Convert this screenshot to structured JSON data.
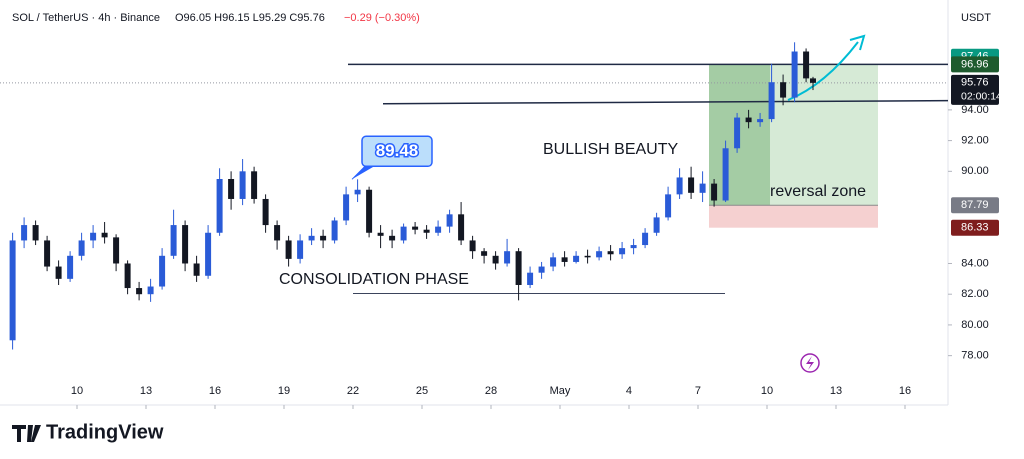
{
  "chart_data": {
    "type": "candlestick",
    "header": {
      "symbol": "SOL / TetherUS · 4h · Binance",
      "ohlc": "O96.05 H96.15 L95.29 C95.76",
      "change": "−0.29 (−0.30%)"
    },
    "currency": "USDT",
    "up_color": "#2a5bd7",
    "down_color": "#131722",
    "x": [
      7.2,
      7.7,
      8.2,
      8.7,
      9.2,
      9.7,
      10.2,
      10.7,
      11.2,
      11.7,
      12.2,
      12.7,
      13.2,
      13.7,
      14.2,
      14.7,
      15.2,
      15.7,
      16.2,
      16.7,
      17.2,
      17.7,
      18.2,
      18.7,
      19.2,
      19.7,
      20.2,
      20.7,
      21.2,
      21.7,
      22.2,
      22.7,
      23.2,
      23.7,
      24.2,
      24.7,
      25.2,
      25.7,
      26.2,
      26.7,
      27.2,
      27.7,
      28.2,
      28.7,
      29.2,
      29.7,
      30.2,
      30.7,
      31.2,
      31.7,
      32.2,
      32.7,
      33.2,
      33.7,
      34.2,
      34.7,
      35.2,
      35.7,
      36.2,
      36.7,
      37.2,
      37.7,
      38.2,
      38.7,
      39.2,
      39.7,
      40.2,
      40.7,
      41.2,
      41.7,
      42.0
    ],
    "open": [
      79,
      85.5,
      86.5,
      85.5,
      83.8,
      83,
      84.5,
      85.5,
      86,
      85.7,
      84,
      82.4,
      82,
      82.5,
      84.5,
      86.5,
      84,
      83.2,
      86,
      89.5,
      88.2,
      90,
      88.2,
      86.5,
      85.5,
      84.3,
      85.5,
      85.8,
      85.5,
      86.8,
      88.5,
      88.8,
      86,
      85.8,
      85.5,
      86.4,
      86.2,
      86,
      86.4,
      87.2,
      85.5,
      84.8,
      84.5,
      84,
      84.8,
      82.6,
      83.4,
      83.8,
      84.4,
      84.1,
      84.5,
      84.4,
      84.8,
      84.6,
      85,
      85.2,
      86,
      87,
      88.5,
      89.6,
      88.6,
      89.2,
      88.1,
      91.5,
      93.5,
      93.2,
      93.4,
      95.8,
      94.8,
      97.8,
      96.05
    ],
    "high": [
      86,
      87,
      86.8,
      85.8,
      84.2,
      84.8,
      86,
      86.5,
      86.7,
      85.9,
      84.2,
      82.8,
      83,
      85,
      87.5,
      86.8,
      84.5,
      86.5,
      90.2,
      90,
      90.8,
      90.3,
      88.5,
      86.8,
      85.8,
      85.9,
      86.3,
      86.2,
      87,
      89,
      89.48,
      89,
      86.5,
      86.2,
      86.6,
      86.7,
      86.5,
      86.8,
      87.5,
      88,
      85.8,
      85,
      84.8,
      85.6,
      85,
      83.8,
      84.1,
      84.7,
      84.8,
      84.8,
      84.9,
      85.1,
      85.2,
      85.4,
      85.6,
      86.3,
      87.3,
      89,
      90.2,
      90.3,
      90,
      89.5,
      92,
      93.8,
      94,
      93.8,
      97,
      96.3,
      98.4,
      98,
      96.15
    ],
    "low": [
      78.4,
      85,
      85.2,
      83.5,
      82.6,
      82.8,
      84.2,
      85,
      85.3,
      83.5,
      82,
      81.6,
      81.5,
      82.3,
      84.3,
      83.5,
      82.8,
      83,
      85.8,
      87.5,
      87.8,
      87.9,
      86,
      84.9,
      83.8,
      84,
      85.2,
      85,
      85.3,
      86.5,
      88,
      85.7,
      85,
      85,
      85.3,
      85.9,
      85.6,
      85.8,
      86,
      85.2,
      84.3,
      84,
      83.6,
      83.8,
      81.6,
      82.4,
      83,
      83.5,
      83.8,
      84,
      84,
      84.2,
      84.2,
      84.3,
      84.6,
      85,
      85.8,
      86.8,
      88.2,
      88.2,
      88,
      87.7,
      88,
      91.2,
      92.8,
      92.9,
      93.2,
      94.3,
      94.5,
      95.8,
      95.29
    ],
    "close": [
      85.5,
      86.5,
      85.5,
      83.8,
      83,
      84.5,
      85.5,
      86,
      85.7,
      84,
      82.4,
      82,
      82.5,
      84.5,
      86.5,
      84,
      83.2,
      86,
      89.5,
      88.2,
      90,
      88.2,
      86.5,
      85.5,
      84.3,
      85.5,
      85.8,
      85.5,
      86.8,
      88.5,
      88.8,
      86,
      85.8,
      85.5,
      86.4,
      86.2,
      86,
      86.4,
      87.2,
      85.5,
      84.8,
      84.5,
      84,
      84.8,
      82.6,
      83.4,
      83.8,
      84.4,
      84.1,
      84.5,
      84.4,
      84.8,
      84.6,
      85,
      85.2,
      86,
      87,
      88.5,
      89.6,
      88.6,
      89.2,
      88.1,
      91.5,
      93.5,
      93.2,
      93.4,
      95.8,
      94.8,
      97.8,
      96.05,
      95.76
    ],
    "xlim": [
      7,
      47.87
    ],
    "xticks": [
      10,
      13,
      16,
      19,
      22,
      25,
      28,
      {
        "value": 31,
        "label": "May"
      },
      {
        "value": 34,
        "label": "4"
      },
      {
        "value": 37,
        "label": "7"
      },
      {
        "value": 40,
        "label": "10"
      },
      {
        "value": 43,
        "label": "13"
      },
      {
        "value": 46,
        "label": "16"
      }
    ],
    "ylim": [
      76.74,
      99.2
    ],
    "yticks": [
      {
        "value": 78,
        "label": "78.00"
      },
      {
        "value": 80,
        "label": "80.00"
      },
      {
        "value": 82,
        "label": "82.00"
      },
      {
        "value": 84,
        "label": "84.00"
      },
      {
        "value": 90,
        "label": "90.00"
      },
      {
        "value": 92,
        "label": "92.00"
      },
      {
        "value": 94,
        "label": "94.00"
      }
    ],
    "high_tag": {
      "value": 97.46,
      "color": "#089981"
    },
    "last_price": {
      "value": 95.76,
      "color": "#131722",
      "countdown": "02:00:14"
    },
    "position": {
      "target": {
        "value": 96.96,
        "color": "#1e5b2e"
      },
      "entry": {
        "value": 87.79,
        "color": "#787b86"
      },
      "stop": {
        "value": 86.33,
        "color": "#7f1d1d"
      }
    },
    "levels": [
      [
        96.96,
        96.96
      ],
      [
        94.4,
        94.6
      ],
      [
        82.05,
        82.05
      ]
    ],
    "callout": {
      "value": 89.48
    },
    "annotations": {
      "bullish": "BULLISH BEAUTY",
      "consolidation": "CONSOLIDATION PHASE",
      "zone": "reversal zone"
    },
    "brand": "TradingView"
  }
}
